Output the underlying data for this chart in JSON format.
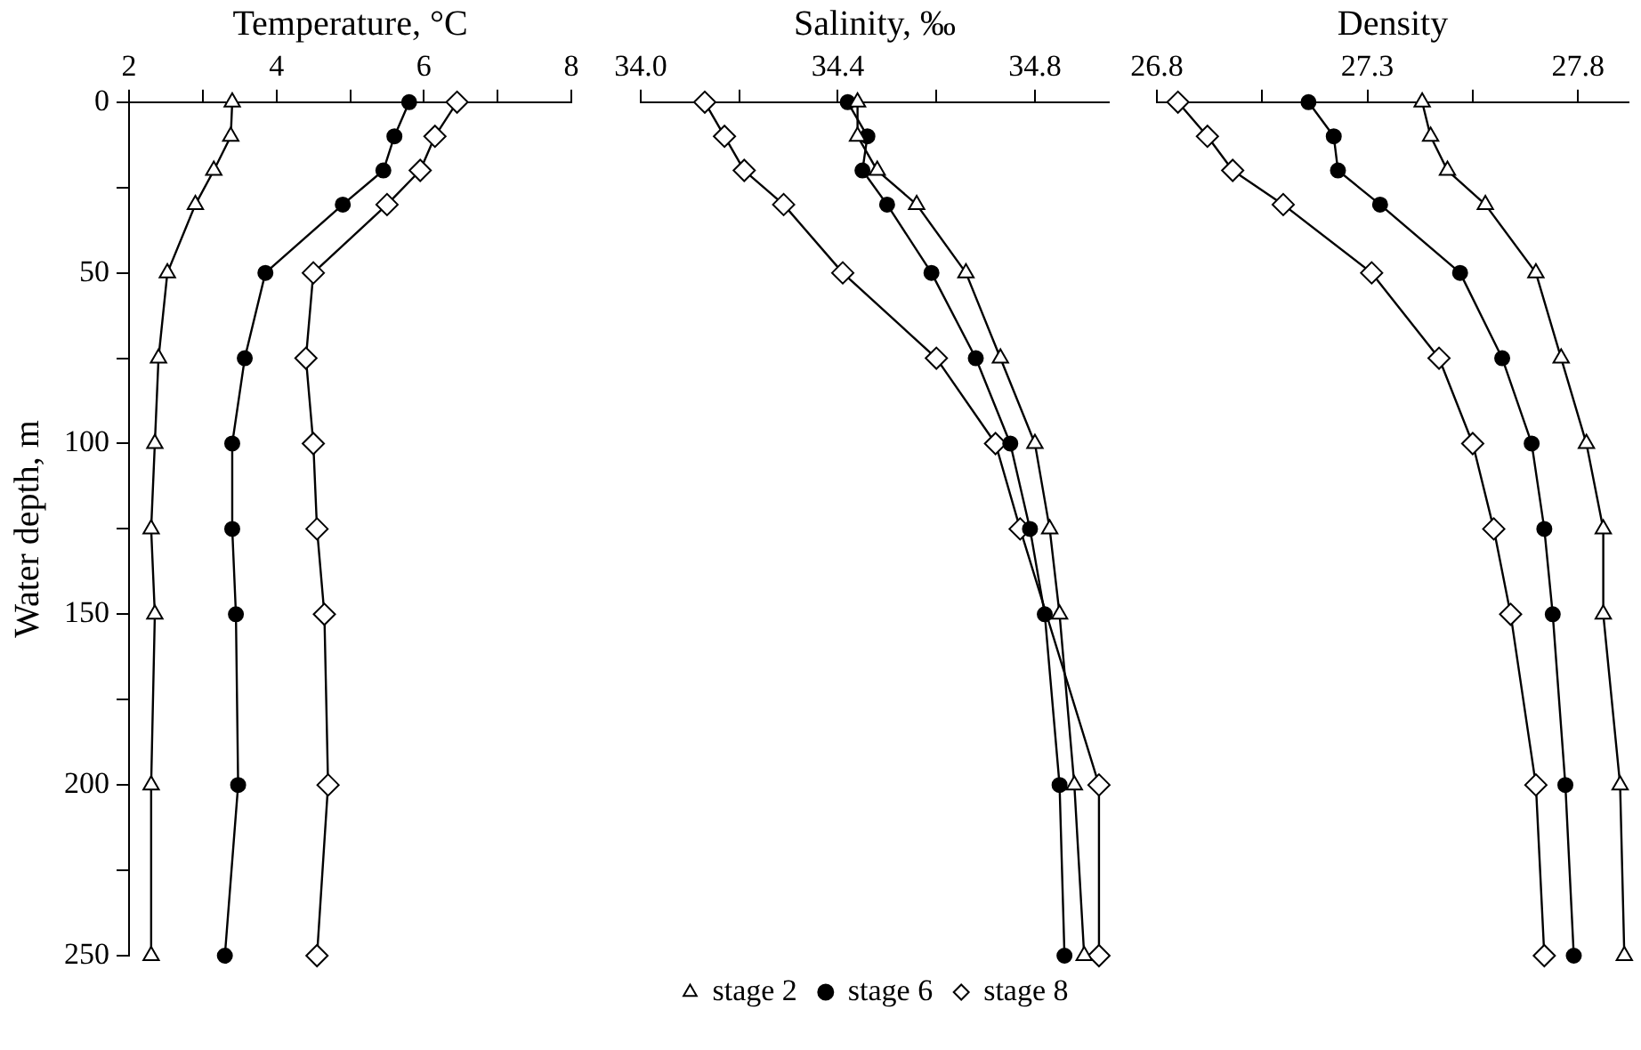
{
  "chart_data": [
    {
      "type": "line",
      "xlabel": "Temperature, °C",
      "ylabel": "Water depth, m",
      "xlim": [
        2,
        8
      ],
      "xticks": [
        2,
        {
          "value": 3,
          "label": null
        },
        4,
        {
          "value": 5,
          "label": null
        },
        6,
        {
          "value": 7,
          "label": null
        },
        8
      ],
      "ylim": [
        250,
        0
      ],
      "yticks": [
        0,
        {
          "value": 25,
          "label": null
        },
        50,
        {
          "value": 75,
          "label": null
        },
        100,
        {
          "value": 125,
          "label": null
        },
        150,
        {
          "value": 175,
          "label": null
        },
        200,
        {
          "value": 225,
          "label": null
        },
        250
      ],
      "grid": false,
      "series": [
        {
          "color": "#000000",
          "marker": "triangle",
          "x": [
            3.4,
            3.38,
            3.15,
            2.9,
            2.52,
            2.4,
            2.35,
            2.3,
            2.35,
            2.3,
            2.3
          ],
          "values": [
            0,
            10,
            20,
            30,
            50,
            75,
            100,
            125,
            150,
            200,
            250
          ]
        },
        {
          "color": "#000000",
          "marker": "circle",
          "x": [
            5.8,
            5.6,
            5.45,
            4.9,
            3.85,
            3.57,
            3.4,
            3.4,
            3.45,
            3.48,
            3.3
          ],
          "values": [
            0,
            10,
            20,
            30,
            50,
            75,
            100,
            125,
            150,
            200,
            250
          ]
        },
        {
          "color": "#000000",
          "marker": "diamond",
          "x": [
            6.45,
            6.15,
            5.95,
            5.5,
            4.5,
            4.4,
            4.5,
            4.55,
            4.65,
            4.7,
            4.55
          ],
          "values": [
            0,
            10,
            20,
            30,
            50,
            75,
            100,
            125,
            150,
            200,
            250
          ]
        }
      ]
    },
    {
      "type": "line",
      "xlabel": "Salinity, ‰",
      "xlim": [
        34.0,
        34.95
      ],
      "xticks": [
        {
          "value": 34,
          "label": "34.0"
        },
        {
          "value": 34.2,
          "label": null
        },
        34.4,
        {
          "value": 34.6,
          "label": null
        },
        34.8
      ],
      "ylim": [
        250,
        0
      ],
      "tick_labels": "x",
      "grid": false,
      "legend": "bottom",
      "series": [
        {
          "name": "stage 2",
          "color": "#000000",
          "marker": "triangle",
          "x": [
            34.44,
            34.44,
            34.48,
            34.56,
            34.66,
            34.73,
            34.8,
            34.83,
            34.85,
            34.88,
            34.9
          ],
          "values": [
            0,
            10,
            20,
            30,
            50,
            75,
            100,
            125,
            150,
            200,
            250
          ]
        },
        {
          "name": "stage 6",
          "color": "#000000",
          "marker": "circle",
          "x": [
            34.42,
            34.46,
            34.45,
            34.5,
            34.59,
            34.68,
            34.75,
            34.79,
            34.82,
            34.85,
            34.86
          ],
          "values": [
            0,
            10,
            20,
            30,
            50,
            75,
            100,
            125,
            150,
            200,
            250
          ]
        },
        {
          "name": "stage 8",
          "color": "#000000",
          "marker": "diamond",
          "x": [
            34.13,
            34.17,
            34.21,
            34.29,
            34.41,
            34.6,
            34.72,
            34.77,
            34.84,
            34.93,
            34.93
          ],
          "values": [
            0,
            10,
            20,
            30,
            50,
            75,
            100,
            125,
            null,
            200,
            250
          ]
        }
      ]
    },
    {
      "type": "line",
      "xlabel": "Density",
      "xlim": [
        26.8,
        27.92
      ],
      "xticks": [
        26.8,
        {
          "value": 27.05,
          "label": null
        },
        27.3,
        {
          "value": 27.55,
          "label": null
        },
        27.8
      ],
      "ylim": [
        250,
        0
      ],
      "tick_labels": "x",
      "grid": false,
      "series": [
        {
          "color": "#000000",
          "marker": "triangle",
          "x": [
            27.43,
            27.45,
            27.49,
            27.58,
            27.7,
            27.76,
            27.82,
            27.86,
            27.86,
            27.9,
            27.91
          ],
          "values": [
            0,
            10,
            20,
            30,
            50,
            75,
            100,
            125,
            150,
            200,
            250
          ]
        },
        {
          "color": "#000000",
          "marker": "circle",
          "x": [
            27.16,
            27.22,
            27.23,
            27.33,
            27.52,
            27.62,
            27.69,
            27.72,
            27.74,
            27.77,
            27.79
          ],
          "values": [
            0,
            10,
            20,
            30,
            50,
            75,
            100,
            125,
            150,
            200,
            250
          ]
        },
        {
          "color": "#000000",
          "marker": "diamond",
          "x": [
            26.85,
            26.92,
            26.98,
            27.1,
            27.31,
            27.47,
            27.55,
            27.6,
            27.64,
            27.7,
            27.72
          ],
          "values": [
            0,
            10,
            20,
            30,
            50,
            75,
            100,
            125,
            150,
            200,
            250
          ]
        }
      ]
    }
  ]
}
